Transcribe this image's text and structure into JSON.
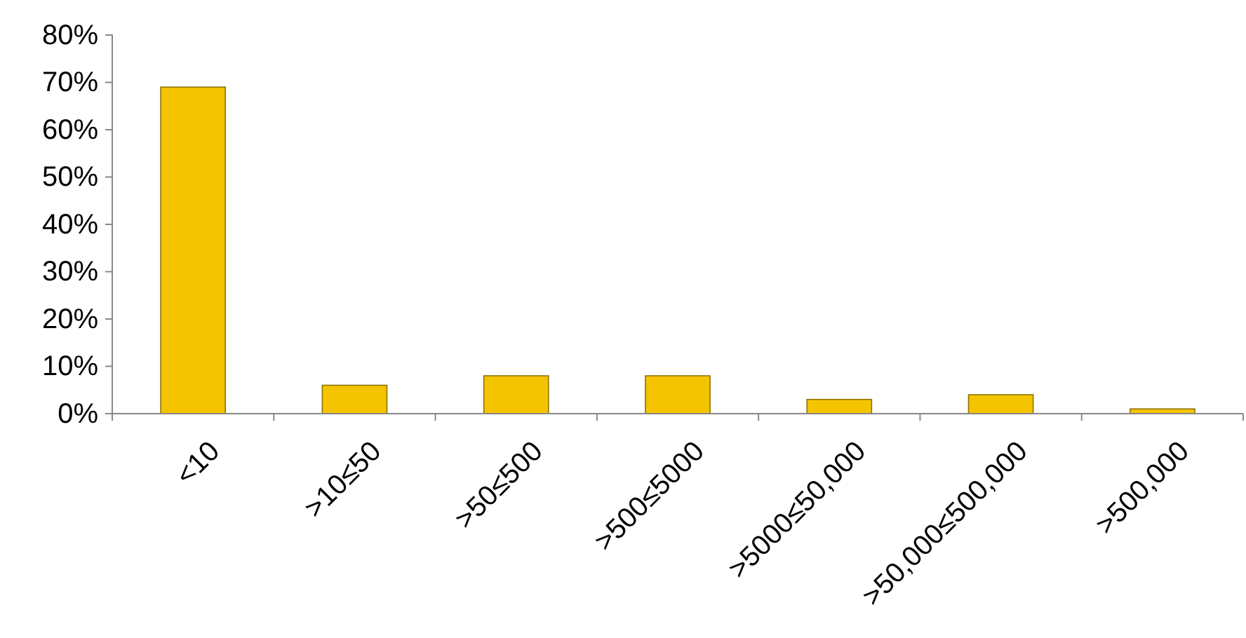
{
  "chart_data": {
    "type": "bar",
    "categories": [
      "<10",
      ">10≤50",
      ">50≤500",
      ">500≤5000",
      ">5000≤50,000",
      ">50,000≤500,000",
      ">500,000"
    ],
    "values": [
      69,
      6,
      8,
      8,
      3,
      4,
      1
    ],
    "color": "#f5c400",
    "ylim": [
      0,
      80
    ],
    "yticks": [
      {
        "value": 0,
        "label": "0%"
      },
      {
        "value": 10,
        "label": "10%"
      },
      {
        "value": 20,
        "label": "20%"
      },
      {
        "value": 30,
        "label": "30%"
      },
      {
        "value": 40,
        "label": "40%"
      },
      {
        "value": 50,
        "label": "50%"
      },
      {
        "value": 60,
        "label": "60%"
      },
      {
        "value": 70,
        "label": "70%"
      },
      {
        "value": 80,
        "label": "80%"
      }
    ]
  }
}
